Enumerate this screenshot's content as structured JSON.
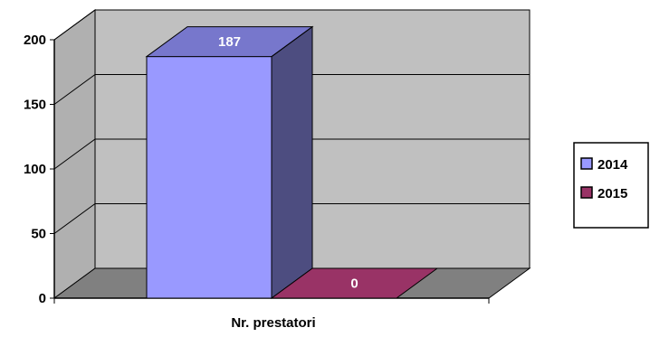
{
  "chart_data": {
    "type": "bar",
    "categories": [
      "Nr. prestatori"
    ],
    "series": [
      {
        "name": "2014",
        "values": [
          187
        ],
        "color": "#9999ff",
        "side_color": "#4d4d80",
        "top_color": "#7777cc"
      },
      {
        "name": "2015",
        "values": [
          0
        ],
        "color": "#993366",
        "side_color": "#6b2347",
        "top_color": "#802050"
      }
    ],
    "ylim": [
      0,
      200
    ],
    "yticks": [
      0,
      50,
      100,
      150,
      200
    ],
    "grid": true,
    "legend_position": "right",
    "data_labels": [
      "187",
      "0"
    ],
    "colors": {
      "back_wall": "#c0c0c0",
      "side_wall": "#b0b0b0",
      "floor": "#808080",
      "grid": "#000000"
    }
  }
}
